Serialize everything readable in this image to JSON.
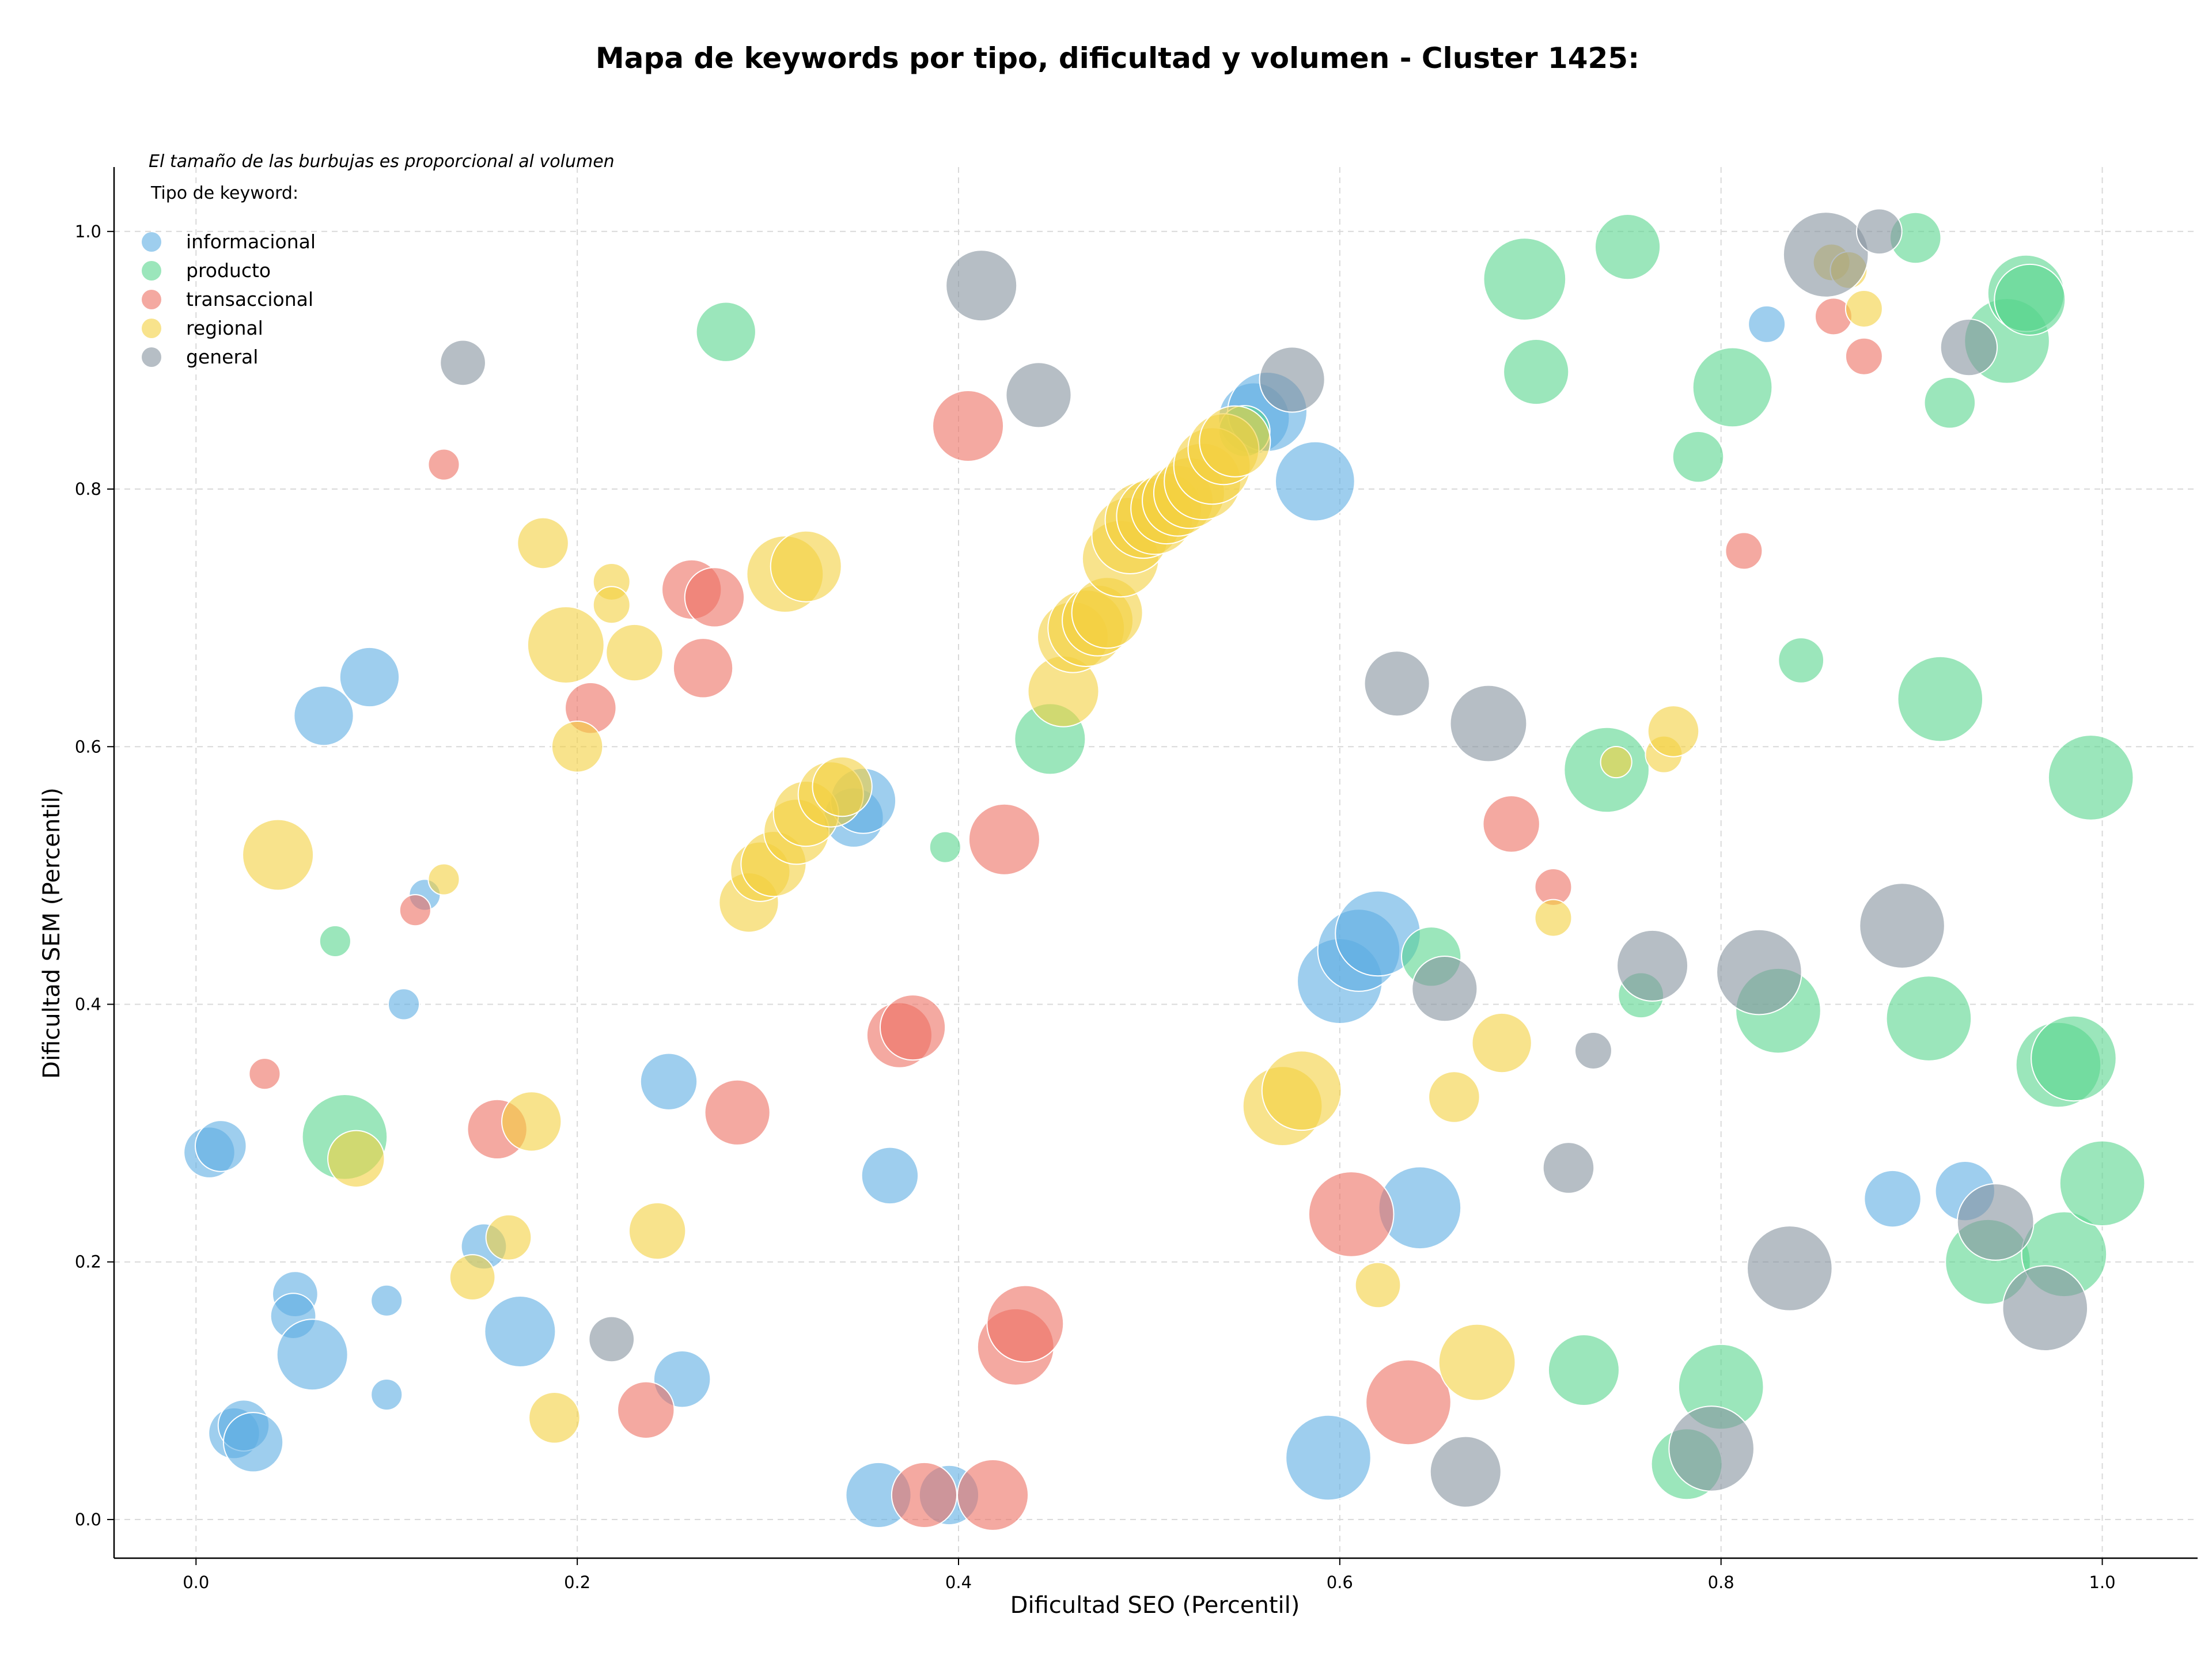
{
  "chart_data": {
    "type": "scatter",
    "title": "Mapa de keywords por tipo, dificultad y volumen - Cluster 1425:",
    "xlabel": "Dificultad SEO (Percentil)",
    "ylabel": "Dificultad SEM (Percentil)",
    "xlim": [
      -0.043,
      1.05
    ],
    "ylim": [
      -0.03,
      1.05
    ],
    "xticks": [
      "0.0",
      "0.2",
      "0.4",
      "0.6",
      "0.8",
      "1.0"
    ],
    "yticks": [
      "0.0",
      "0.2",
      "0.4",
      "0.6",
      "0.8",
      "1.0"
    ],
    "grid": true,
    "annotation": "El tamaño de las burbujas es proporcional al volumen",
    "legend_title": "Tipo de keyword:",
    "legend_position": "top-left",
    "series": [
      {
        "name": "informacional",
        "color": "#5DADE2",
        "points": [
          [
            0.007,
            0.285,
            18
          ],
          [
            0.013,
            0.29,
            18
          ],
          [
            0.052,
            0.175,
            16
          ],
          [
            0.051,
            0.158,
            16
          ],
          [
            0.061,
            0.128,
            25
          ],
          [
            0.02,
            0.067,
            18
          ],
          [
            0.025,
            0.073,
            18
          ],
          [
            0.03,
            0.06,
            21
          ],
          [
            0.067,
            0.624,
            21
          ],
          [
            0.091,
            0.654,
            21
          ],
          [
            0.1,
            0.17,
            11
          ],
          [
            0.1,
            0.097,
            11
          ],
          [
            0.109,
            0.4,
            11
          ],
          [
            0.12,
            0.485,
            11
          ],
          [
            0.151,
            0.212,
            16
          ],
          [
            0.17,
            0.146,
            25
          ],
          [
            0.248,
            0.34,
            20
          ],
          [
            0.255,
            0.109,
            20
          ],
          [
            0.345,
            0.545,
            21
          ],
          [
            0.35,
            0.558,
            23
          ],
          [
            0.358,
            0.019,
            23
          ],
          [
            0.364,
            0.267,
            20
          ],
          [
            0.395,
            0.019,
            21
          ],
          [
            0.555,
            0.855,
            25
          ],
          [
            0.562,
            0.86,
            28
          ],
          [
            0.587,
            0.806,
            28
          ],
          [
            0.6,
            0.418,
            30
          ],
          [
            0.61,
            0.442,
            29
          ],
          [
            0.62,
            0.455,
            30
          ],
          [
            0.642,
            0.242,
            29
          ],
          [
            0.594,
            0.048,
            30
          ],
          [
            0.824,
            0.928,
            13
          ],
          [
            0.89,
            0.249,
            20
          ],
          [
            0.928,
            0.255,
            21
          ]
        ]
      },
      {
        "name": "producto",
        "color": "#58D68D",
        "points": [
          [
            0.073,
            0.449,
            11
          ],
          [
            0.078,
            0.297,
            30
          ],
          [
            0.278,
            0.922,
            21
          ],
          [
            0.393,
            0.522,
            11
          ],
          [
            0.448,
            0.606,
            25
          ],
          [
            0.55,
            0.845,
            18
          ],
          [
            0.648,
            0.437,
            21
          ],
          [
            0.697,
            0.963,
            29
          ],
          [
            0.703,
            0.891,
            23
          ],
          [
            0.74,
            0.582,
            30
          ],
          [
            0.751,
            0.988,
            23
          ],
          [
            0.758,
            0.407,
            16
          ],
          [
            0.728,
            0.116,
            25
          ],
          [
            0.782,
            0.043,
            25
          ],
          [
            0.788,
            0.825,
            18
          ],
          [
            0.8,
            0.103,
            30
          ],
          [
            0.806,
            0.879,
            28
          ],
          [
            0.83,
            0.395,
            30
          ],
          [
            0.842,
            0.667,
            16
          ],
          [
            0.902,
            0.995,
            18
          ],
          [
            0.909,
            0.389,
            30
          ],
          [
            0.915,
            0.637,
            30
          ],
          [
            0.92,
            0.867,
            18
          ],
          [
            0.94,
            0.2,
            30
          ],
          [
            0.95,
            0.915,
            30
          ],
          [
            0.96,
            0.952,
            27
          ],
          [
            0.962,
            0.947,
            25
          ],
          [
            0.977,
            0.353,
            30
          ],
          [
            0.985,
            0.358,
            30
          ],
          [
            0.98,
            0.206,
            30
          ],
          [
            0.994,
            0.576,
            30
          ],
          [
            1.0,
            0.261,
            30
          ]
        ]
      },
      {
        "name": "transaccional",
        "color": "#EC7063",
        "points": [
          [
            0.036,
            0.346,
            11
          ],
          [
            0.115,
            0.473,
            11
          ],
          [
            0.13,
            0.819,
            11
          ],
          [
            0.158,
            0.303,
            21
          ],
          [
            0.207,
            0.63,
            18
          ],
          [
            0.26,
            0.722,
            21
          ],
          [
            0.272,
            0.716,
            21
          ],
          [
            0.266,
            0.661,
            21
          ],
          [
            0.236,
            0.085,
            20
          ],
          [
            0.284,
            0.316,
            23
          ],
          [
            0.369,
            0.376,
            23
          ],
          [
            0.376,
            0.382,
            23
          ],
          [
            0.382,
            0.019,
            23
          ],
          [
            0.405,
            0.849,
            25
          ],
          [
            0.418,
            0.019,
            25
          ],
          [
            0.424,
            0.528,
            25
          ],
          [
            0.43,
            0.134,
            27
          ],
          [
            0.435,
            0.152,
            27
          ],
          [
            0.606,
            0.237,
            30
          ],
          [
            0.636,
            0.091,
            30
          ],
          [
            0.69,
            0.54,
            20
          ],
          [
            0.712,
            0.491,
            13
          ],
          [
            0.812,
            0.752,
            13
          ],
          [
            0.859,
            0.934,
            13
          ],
          [
            0.875,
            0.903,
            13
          ]
        ]
      },
      {
        "name": "regional",
        "color": "#F4D03F",
        "points": [
          [
            0.043,
            0.516,
            25
          ],
          [
            0.084,
            0.28,
            20
          ],
          [
            0.13,
            0.497,
            11
          ],
          [
            0.145,
            0.188,
            16
          ],
          [
            0.164,
            0.219,
            16
          ],
          [
            0.176,
            0.309,
            21
          ],
          [
            0.182,
            0.758,
            18
          ],
          [
            0.188,
            0.079,
            18
          ],
          [
            0.194,
            0.679,
            27
          ],
          [
            0.2,
            0.6,
            18
          ],
          [
            0.218,
            0.728,
            13
          ],
          [
            0.218,
            0.71,
            13
          ],
          [
            0.23,
            0.673,
            20
          ],
          [
            0.242,
            0.224,
            20
          ],
          [
            0.29,
            0.479,
            21
          ],
          [
            0.296,
            0.503,
            21
          ],
          [
            0.303,
            0.509,
            23
          ],
          [
            0.309,
            0.734,
            27
          ],
          [
            0.32,
            0.74,
            25
          ],
          [
            0.315,
            0.534,
            23
          ],
          [
            0.32,
            0.548,
            23
          ],
          [
            0.333,
            0.563,
            23
          ],
          [
            0.339,
            0.569,
            21
          ],
          [
            0.455,
            0.643,
            25
          ],
          [
            0.46,
            0.685,
            25
          ],
          [
            0.467,
            0.692,
            27
          ],
          [
            0.473,
            0.698,
            25
          ],
          [
            0.478,
            0.704,
            25
          ],
          [
            0.485,
            0.746,
            27
          ],
          [
            0.49,
            0.764,
            27
          ],
          [
            0.497,
            0.776,
            27
          ],
          [
            0.503,
            0.779,
            27
          ],
          [
            0.509,
            0.785,
            25
          ],
          [
            0.515,
            0.791,
            25
          ],
          [
            0.521,
            0.797,
            25
          ],
          [
            0.528,
            0.806,
            27
          ],
          [
            0.533,
            0.818,
            27
          ],
          [
            0.539,
            0.831,
            25
          ],
          [
            0.545,
            0.837,
            25
          ],
          [
            0.57,
            0.321,
            28
          ],
          [
            0.58,
            0.333,
            28
          ],
          [
            0.62,
            0.182,
            16
          ],
          [
            0.66,
            0.328,
            18
          ],
          [
            0.672,
            0.122,
            27
          ],
          [
            0.685,
            0.37,
            21
          ],
          [
            0.712,
            0.467,
            13
          ],
          [
            0.745,
            0.588,
            11
          ],
          [
            0.77,
            0.594,
            13
          ],
          [
            0.775,
            0.612,
            18
          ],
          [
            0.858,
            0.976,
            13
          ],
          [
            0.867,
            0.97,
            13
          ],
          [
            0.875,
            0.94,
            13
          ]
        ]
      },
      {
        "name": "general",
        "color": "#85929E",
        "points": [
          [
            0.14,
            0.898,
            16
          ],
          [
            0.218,
            0.14,
            16
          ],
          [
            0.412,
            0.958,
            25
          ],
          [
            0.442,
            0.873,
            23
          ],
          [
            0.575,
            0.885,
            23
          ],
          [
            0.63,
            0.649,
            23
          ],
          [
            0.655,
            0.412,
            23
          ],
          [
            0.678,
            0.618,
            27
          ],
          [
            0.666,
            0.037,
            25
          ],
          [
            0.72,
            0.273,
            18
          ],
          [
            0.733,
            0.364,
            13
          ],
          [
            0.764,
            0.43,
            25
          ],
          [
            0.795,
            0.055,
            30
          ],
          [
            0.82,
            0.425,
            30
          ],
          [
            0.836,
            0.195,
            30
          ],
          [
            0.855,
            0.982,
            30
          ],
          [
            0.883,
            1.0,
            16
          ],
          [
            0.895,
            0.461,
            30
          ],
          [
            0.93,
            0.91,
            20
          ],
          [
            0.944,
            0.231,
            27
          ],
          [
            0.97,
            0.164,
            30
          ]
        ]
      }
    ]
  }
}
